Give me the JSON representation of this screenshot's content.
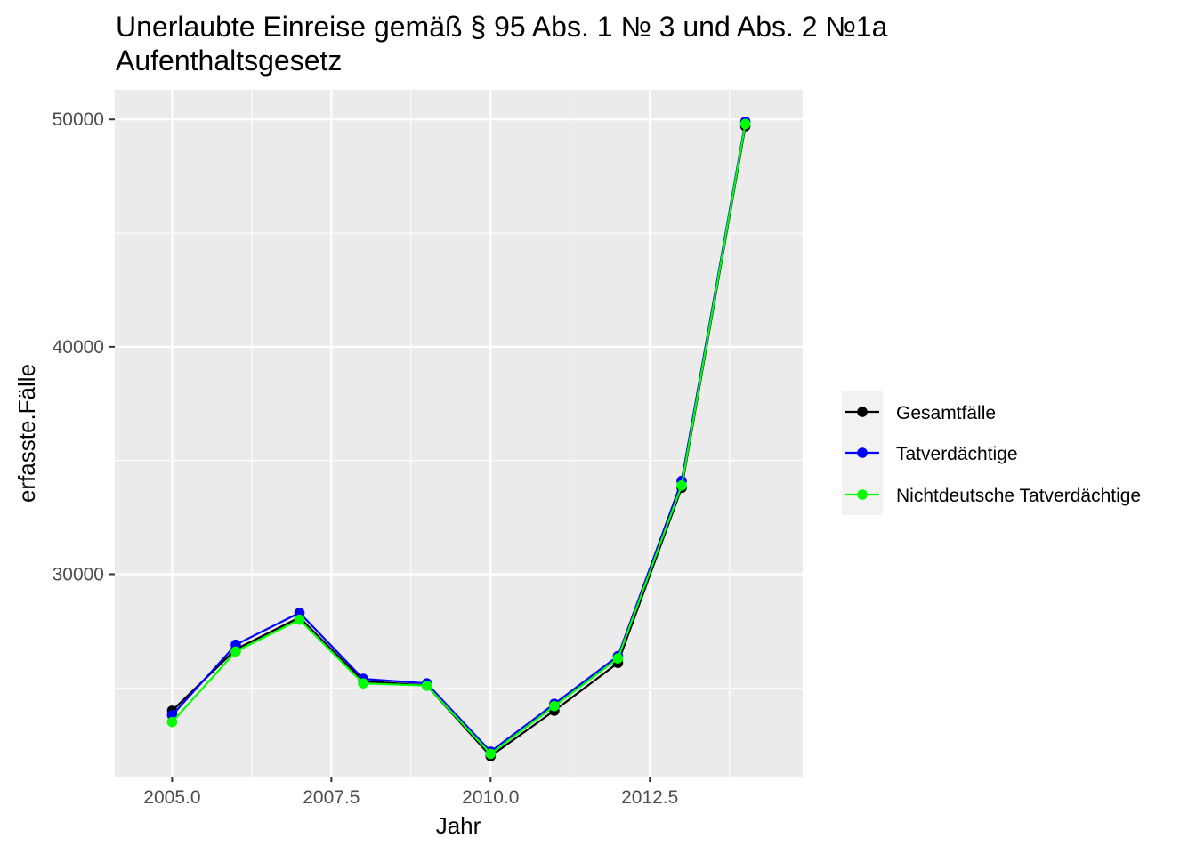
{
  "chart_data": {
    "type": "line",
    "title_line1": "Unerlaubte Einreise gemäß § 95 Abs. 1 № 3 und Abs. 2 №1a",
    "title_line2": "Aufenthaltsgesetz",
    "xlabel": "Jahr",
    "ylabel": "erfasste.Fälle",
    "x": [
      2005,
      2006,
      2007,
      2008,
      2009,
      2010,
      2011,
      2012,
      2013,
      2014
    ],
    "xlim": [
      2004.1,
      2014.9
    ],
    "ylim": [
      21100,
      51300
    ],
    "x_ticks": [
      2005.0,
      2007.5,
      2010.0,
      2012.5
    ],
    "x_tick_labels": [
      "2005.0",
      "2007.5",
      "2010.0",
      "2012.5"
    ],
    "y_ticks": [
      30000,
      40000,
      50000
    ],
    "y_tick_labels": [
      "30000",
      "40000",
      "50000"
    ],
    "grid": true,
    "legend_position": "right",
    "panel_background": "#ebebeb",
    "grid_color": "#ffffff",
    "series": [
      {
        "name": "Gesamtfälle",
        "color": "#000000",
        "values": [
          24000,
          26700,
          28100,
          25300,
          25100,
          22000,
          24000,
          26100,
          33800,
          49700
        ]
      },
      {
        "name": "Tatverdächtige",
        "color": "#0000ff",
        "values": [
          23800,
          26900,
          28300,
          25400,
          25200,
          22200,
          24300,
          26400,
          34100,
          49900
        ]
      },
      {
        "name": "Nichtdeutsche Tatverdächtige",
        "color": "#00ff00",
        "values": [
          23500,
          26600,
          28000,
          25200,
          25100,
          22100,
          24200,
          26300,
          33900,
          49800
        ]
      }
    ]
  }
}
